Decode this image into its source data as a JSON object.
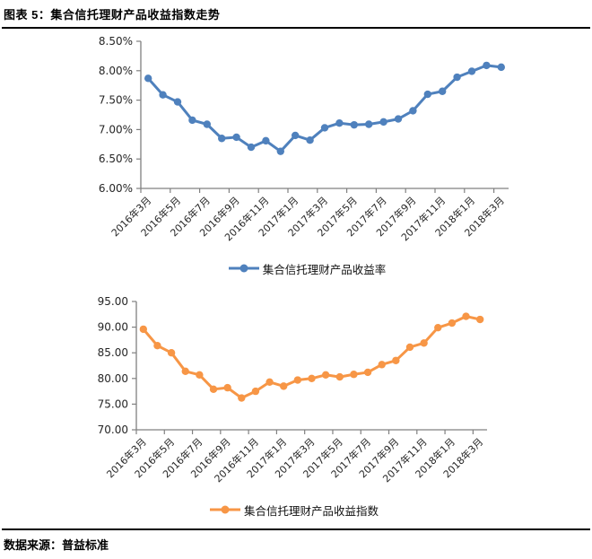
{
  "header": {
    "title": "图表 5：集合信托理财产品收益指数走势"
  },
  "footer": {
    "source": "数据来源：普益标准"
  },
  "colors": {
    "series_blue": "#4F81BD",
    "series_orange": "#F79646",
    "axis_gray": "#808080",
    "label_dark": "#262626"
  },
  "chart_data": [
    {
      "type": "line",
      "title": "",
      "categories": [
        "2016年3月",
        "2016年4月",
        "2016年5月",
        "2016年6月",
        "2016年7月",
        "2016年8月",
        "2016年9月",
        "2016年10月",
        "2016年11月",
        "2016年12月",
        "2017年1月",
        "2017年2月",
        "2017年3月",
        "2017年4月",
        "2017年5月",
        "2017年6月",
        "2017年7月",
        "2017年8月",
        "2017年9月",
        "2017年10月",
        "2017年11月",
        "2017年12月",
        "2018年1月",
        "2018年2月",
        "2018年3月"
      ],
      "x_tick_labels": [
        "2016年3月",
        "2016年5月",
        "2016年7月",
        "2016年9月",
        "2016年11月",
        "2017年1月",
        "2017年3月",
        "2017年5月",
        "2017年7月",
        "2017年9月",
        "2017年11月",
        "2018年1月",
        "2018年3月"
      ],
      "x_label_every": 2,
      "ylim": [
        6.0,
        8.5
      ],
      "y_tick_values": [
        6.0,
        6.5,
        7.0,
        7.5,
        8.0,
        8.5
      ],
      "y_tick_labels": [
        "6.00%",
        "6.50%",
        "7.00%",
        "7.50%",
        "8.00%",
        "8.50%"
      ],
      "grid": false,
      "legend_position": "bottom",
      "series": [
        {
          "name": "集合信托理财产品收益率",
          "color": "#4F81BD",
          "marker": "circle",
          "values": [
            7.87,
            7.59,
            7.47,
            7.16,
            7.09,
            6.85,
            6.87,
            6.7,
            6.81,
            6.63,
            6.9,
            6.82,
            7.03,
            7.11,
            7.08,
            7.09,
            7.13,
            7.18,
            7.32,
            7.6,
            7.65,
            7.89,
            7.99,
            8.09,
            8.06
          ]
        }
      ]
    },
    {
      "type": "line",
      "title": "",
      "categories": [
        "2016年3月",
        "2016年4月",
        "2016年5月",
        "2016年6月",
        "2016年7月",
        "2016年8月",
        "2016年9月",
        "2016年10月",
        "2016年11月",
        "2016年12月",
        "2017年1月",
        "2017年2月",
        "2017年3月",
        "2017年4月",
        "2017年5月",
        "2017年6月",
        "2017年7月",
        "2017年8月",
        "2017年9月",
        "2017年10月",
        "2017年11月",
        "2017年12月",
        "2018年1月",
        "2018年2月",
        "2018年3月"
      ],
      "x_tick_labels": [
        "2016年3月",
        "2016年5月",
        "2016年7月",
        "2016年9月",
        "2016年11月",
        "2017年1月",
        "2017年3月",
        "2017年5月",
        "2017年7月",
        "2017年9月",
        "2017年11月",
        "2018年1月",
        "2018年3月"
      ],
      "x_label_every": 2,
      "ylim": [
        70.0,
        95.0
      ],
      "y_tick_values": [
        70,
        75,
        80,
        85,
        90,
        95
      ],
      "y_tick_labels": [
        "70.00",
        "75.00",
        "80.00",
        "85.00",
        "90.00",
        "95.00"
      ],
      "grid": false,
      "legend_position": "bottom",
      "series": [
        {
          "name": "集合信托理财产品收益指数",
          "color": "#F79646",
          "marker": "circle",
          "values": [
            89.6,
            86.4,
            85.0,
            81.4,
            80.7,
            77.9,
            78.2,
            76.2,
            77.5,
            79.3,
            78.5,
            79.7,
            80.0,
            80.7,
            80.3,
            80.8,
            81.2,
            82.7,
            83.5,
            86.1,
            86.9,
            89.9,
            90.8,
            92.1,
            91.5
          ]
        }
      ]
    }
  ]
}
